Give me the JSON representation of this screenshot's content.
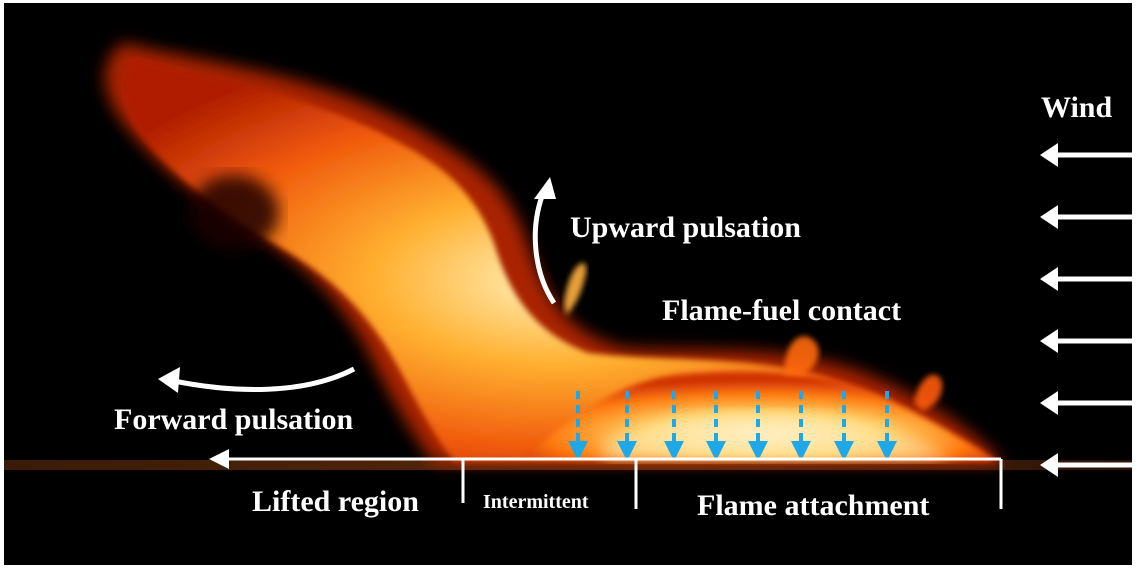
{
  "labels": {
    "wind": "Wind",
    "upward_pulsation": "Upward pulsation",
    "flame_fuel_contact": "Flame-fuel contact",
    "forward_pulsation": "Forward pulsation",
    "lifted_region": "Lifted region",
    "intermittent": "Intermittent",
    "flame_attachment": "Flame attachment"
  },
  "colors": {
    "background": "#000000",
    "annotation": "#ffffff",
    "contact_arrows": "#1fa8e8",
    "flame_outer": "#d42a05",
    "flame_mid": "#ff7a10",
    "flame_core": "#ffe6a0"
  },
  "icons": {
    "wind_arrows": "arrow-left-icon",
    "contact_arrows": "dashed-arrow-down-icon",
    "pulsation_arrows": "curved-arrow-icon"
  }
}
